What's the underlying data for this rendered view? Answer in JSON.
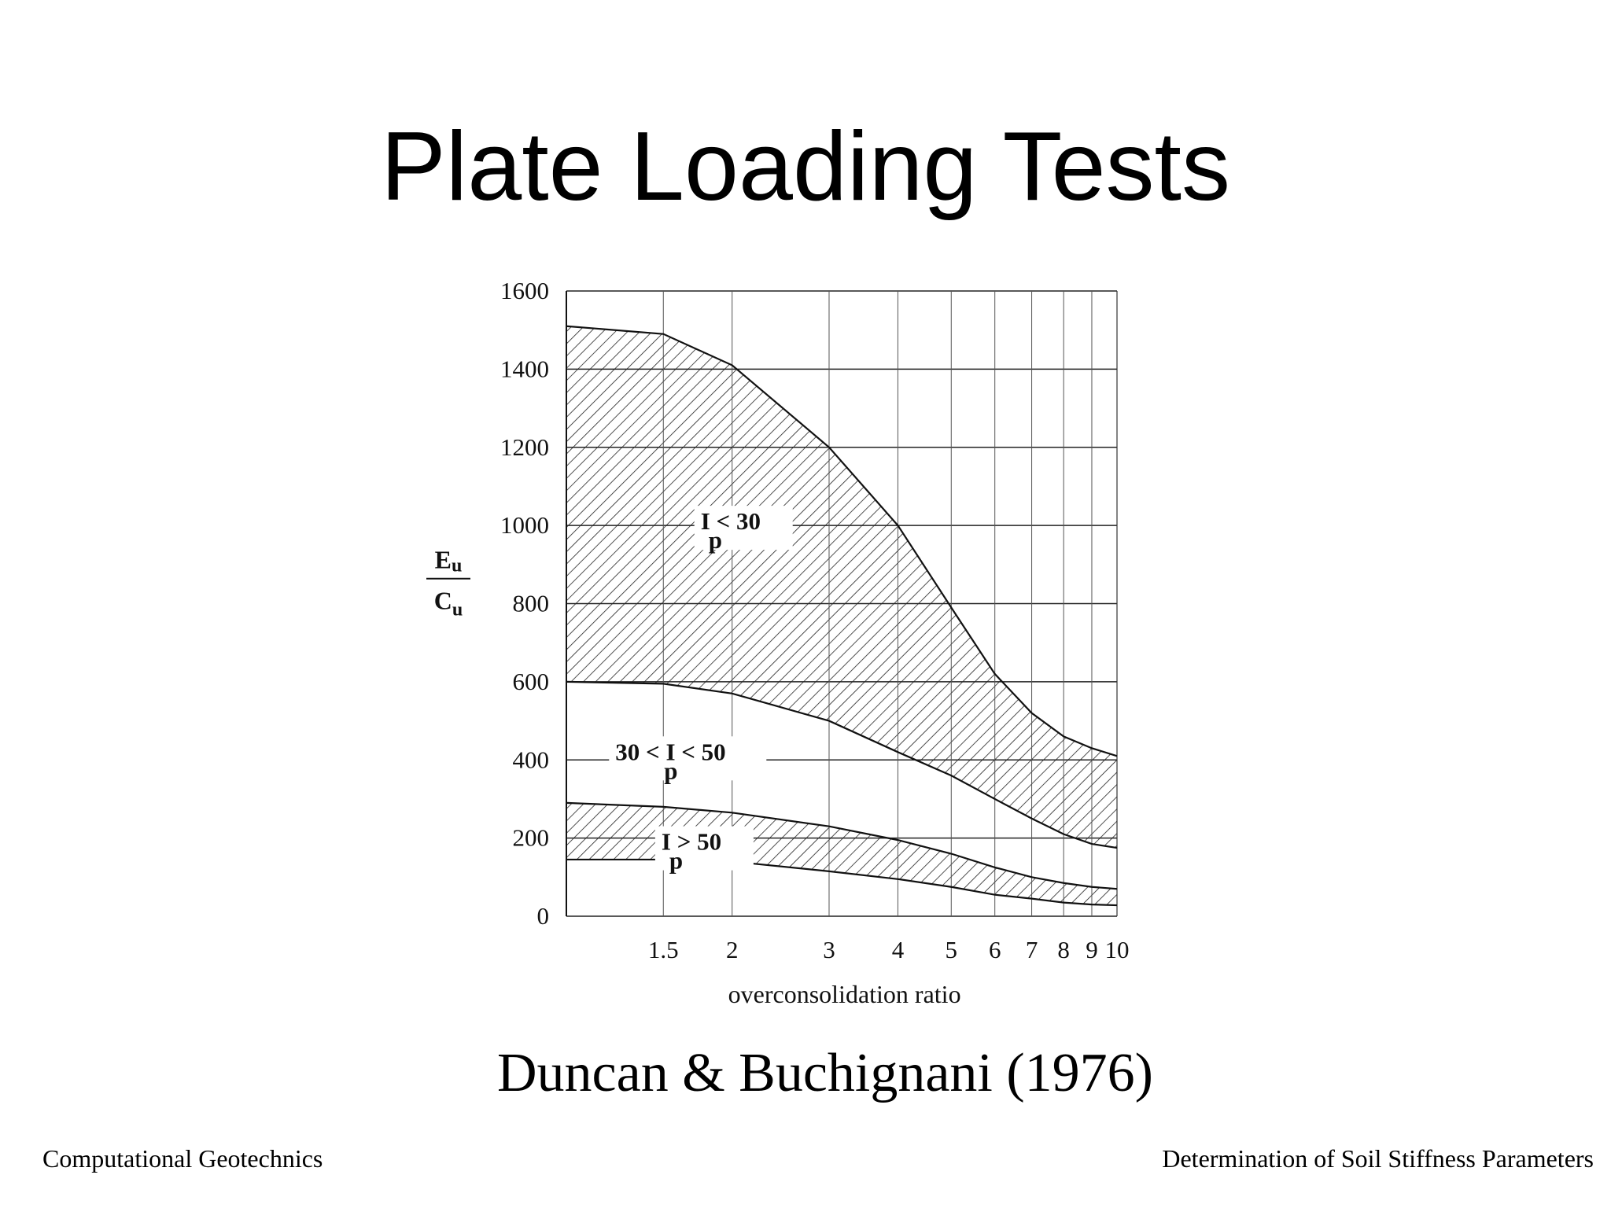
{
  "slide": {
    "title": "Plate Loading Tests",
    "caption": "Duncan & Buchignani (1976)",
    "footer_left": "Computational Geotechnics",
    "footer_right": "Determination of Soil Stiffness Parameters"
  },
  "chart_data": {
    "type": "area",
    "title": "",
    "xlabel": "overconsolidation ratio",
    "ylabel_numerator": "E_u",
    "ylabel_denominator": "C_u",
    "x_scale": "log",
    "xlim": [
      1.0,
      10
    ],
    "ylim": [
      0,
      1600
    ],
    "x_ticks": [
      1.5,
      2,
      3,
      4,
      5,
      6,
      7,
      8,
      9,
      10
    ],
    "x_tick_labels": [
      "1.5",
      "2",
      "3",
      "4",
      "5",
      "6",
      "7",
      "8",
      "9",
      "10"
    ],
    "y_ticks": [
      0,
      200,
      400,
      600,
      800,
      1000,
      1200,
      1400,
      1600
    ],
    "y_tick_labels": [
      "0",
      "200",
      "400",
      "600",
      "800",
      "1000",
      "1200",
      "1400",
      "1600"
    ],
    "grid": true,
    "series": [
      {
        "name": "I_p < 30",
        "label_text": "I  < 30",
        "label_sub": "p",
        "upper": {
          "x": [
            1.0,
            1.5,
            2,
            3,
            4,
            5,
            6,
            7,
            8,
            9,
            10
          ],
          "y": [
            1510,
            1490,
            1410,
            1200,
            1000,
            790,
            620,
            520,
            460,
            430,
            410
          ]
        },
        "lower": {
          "x": [
            1.0,
            1.5,
            2,
            3,
            4,
            5,
            6,
            7,
            8,
            9,
            10
          ],
          "y": [
            600,
            595,
            570,
            500,
            420,
            360,
            300,
            250,
            210,
            185,
            175
          ]
        }
      },
      {
        "name": "30 < I_p < 50",
        "label_text": "30 < I  < 50",
        "label_sub": "p",
        "upper": null,
        "lower": null
      },
      {
        "name": "I_p > 50",
        "label_text": "I  > 50",
        "label_sub": "p",
        "upper": {
          "x": [
            1.0,
            1.5,
            2,
            3,
            4,
            5,
            6,
            7,
            8,
            9,
            10
          ],
          "y": [
            290,
            280,
            265,
            230,
            195,
            160,
            125,
            100,
            85,
            75,
            70
          ]
        },
        "lower": {
          "x": [
            1.0,
            1.5,
            2,
            3,
            4,
            5,
            6,
            7,
            8,
            9,
            10
          ],
          "y": [
            145,
            145,
            140,
            115,
            95,
            75,
            55,
            45,
            35,
            30,
            28
          ]
        }
      }
    ]
  }
}
